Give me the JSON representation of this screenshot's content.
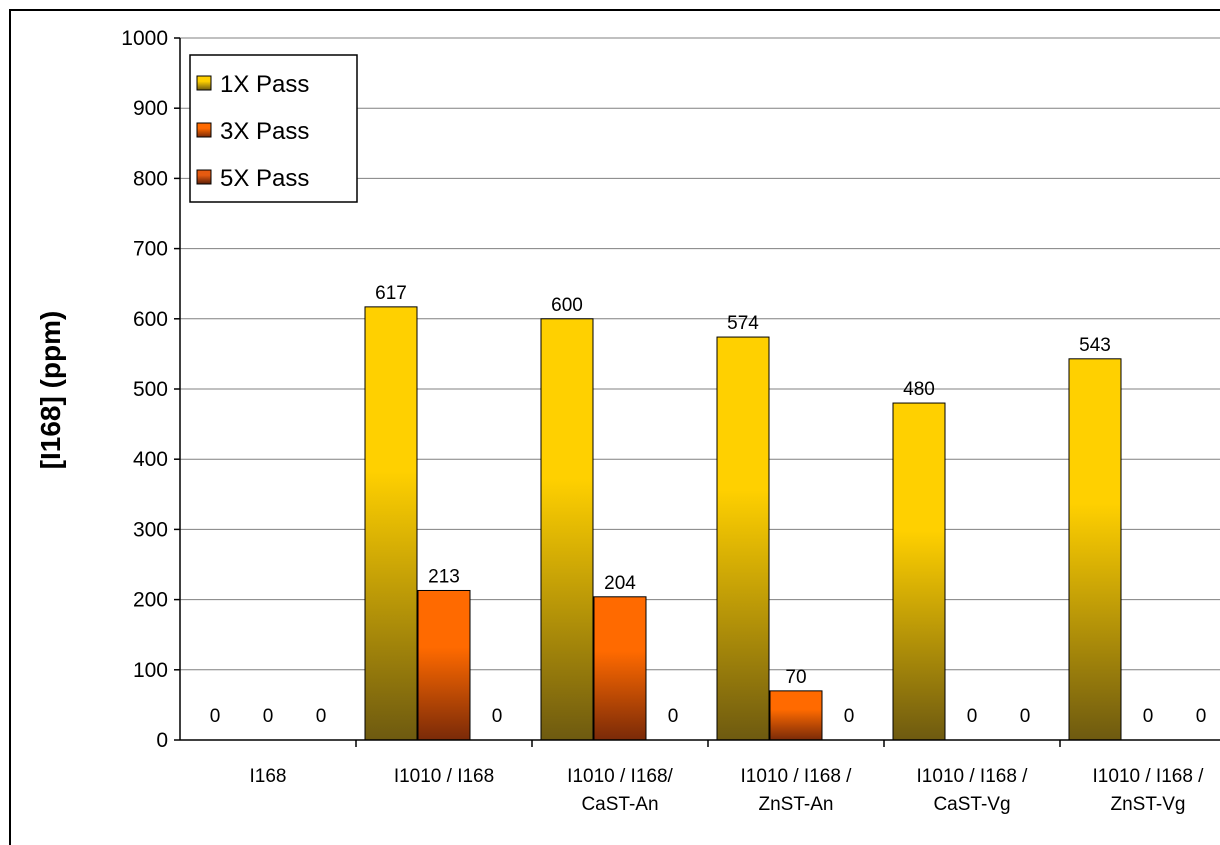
{
  "chart_data": {
    "type": "bar",
    "ylabel": "[I168] (ppm)",
    "ylim": [
      0,
      1000
    ],
    "ytick_step": 100,
    "grid": "horizontal",
    "legend_position": "top-left",
    "categories": [
      [
        "I168"
      ],
      [
        "I1010 / I168"
      ],
      [
        "I1010 / I168/",
        "CaST-An"
      ],
      [
        "I1010 / I168 /",
        "ZnST-An"
      ],
      [
        "I1010 / I168 /",
        "CaST-Vg"
      ],
      [
        "I1010 / I168 /",
        "ZnST-Vg"
      ]
    ],
    "series": [
      {
        "name": "1X Pass",
        "values": [
          0,
          617,
          600,
          574,
          480,
          543
        ],
        "color_top": "#FFD000",
        "color_bottom": "#6E5A10"
      },
      {
        "name": "3X Pass",
        "values": [
          0,
          213,
          204,
          70,
          0,
          0
        ],
        "color_top": "#FF6A00",
        "color_bottom": "#7A2A08"
      },
      {
        "name": "5X Pass",
        "values": [
          0,
          0,
          0,
          0,
          0,
          0
        ],
        "color_top": "#E65A10",
        "color_bottom": "#5A1E08"
      }
    ]
  }
}
